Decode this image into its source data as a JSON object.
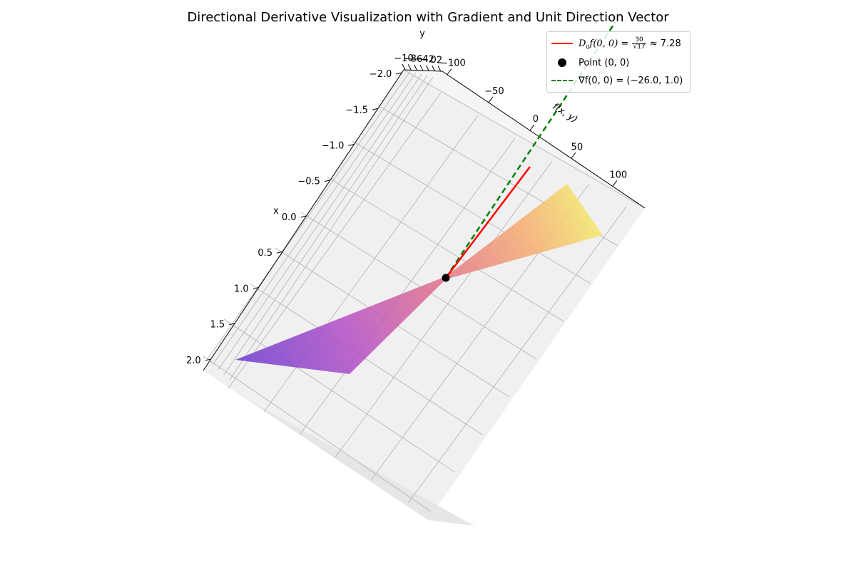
{
  "chart_data": {
    "type": "surface3d",
    "title": "Directional Derivative Visualization with Gradient and Unit Direction Vector",
    "xlabel": "x",
    "ylabel": "y",
    "zlabel": "f(x, y)",
    "x_ticks": [
      "−2.0",
      "−1.5",
      "−1.0",
      "−0.5",
      "0.0",
      "0.5",
      "1.0",
      "1.5",
      "2.0"
    ],
    "y_ticks": [
      "−10",
      "−8",
      "−6",
      "−4",
      "−2",
      "0",
      "2"
    ],
    "z_ticks": [
      "−100",
      "−50",
      "0",
      "50",
      "100"
    ],
    "xlim": [
      -2,
      2
    ],
    "ylim": [
      -2,
      2
    ],
    "zlim": [
      -100,
      100
    ],
    "grid": true,
    "legend_position": "top-right",
    "colormap": [
      "#0d0887",
      "#7e03a8",
      "#cc4778",
      "#f89540",
      "#f0f921"
    ],
    "point": {
      "x": 0,
      "y": 0
    },
    "gradient": [
      -26.0,
      1.0
    ],
    "directional_derivative": 7.28,
    "series": [
      {
        "name": "D_u f(0, 0) = 30/√17 ≈ 7.28",
        "kind": "line",
        "color": "#ff0000"
      },
      {
        "name": "Point (0, 0)",
        "kind": "point",
        "color": "#000000"
      },
      {
        "name": "∇f(0, 0) = (−26.0, 1.0)",
        "kind": "dashed-line",
        "color": "#008000"
      }
    ]
  },
  "legend": {
    "dd_prefix": "D",
    "dd_sub": "u⃗",
    "dd_mid": "f(0, 0) =",
    "dd_num": "30",
    "dd_den": "√17",
    "dd_value": "≈ 7.28",
    "point_label": "Point (0, 0)",
    "grad_label": "∇f(0, 0) = (−26.0, 1.0)"
  }
}
